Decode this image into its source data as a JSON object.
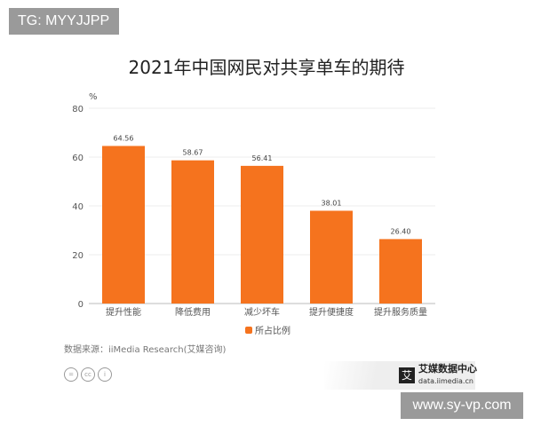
{
  "overlay": {
    "tag": "TG: MYYJJPP",
    "watermark": "www.sy-vp.com"
  },
  "footer": {
    "source": "数据来源：iiMedia Research(艾媒咨询)",
    "logo_name": "艾媒数据中心",
    "logo_url": "data.iimedia.cn",
    "logo_mark": "艾"
  },
  "chart_data": {
    "type": "bar",
    "title": "2021年中国网民对共享单车的期待",
    "ylabel": "%",
    "ylim": [
      0,
      80
    ],
    "yticks": [
      0,
      20,
      40,
      60,
      80
    ],
    "categories": [
      "提升性能",
      "降低费用",
      "减少坏车",
      "提升便捷度",
      "提升服务质量"
    ],
    "series": [
      {
        "name": "所占比例",
        "values": [
          64.56,
          58.67,
          56.41,
          38.01,
          26.4
        ],
        "labels": [
          "64.56",
          "58.67",
          "56.41",
          "38.01",
          "26.40"
        ],
        "color": "#f5731e"
      }
    ],
    "legend": "bottom-center",
    "grid": true
  }
}
